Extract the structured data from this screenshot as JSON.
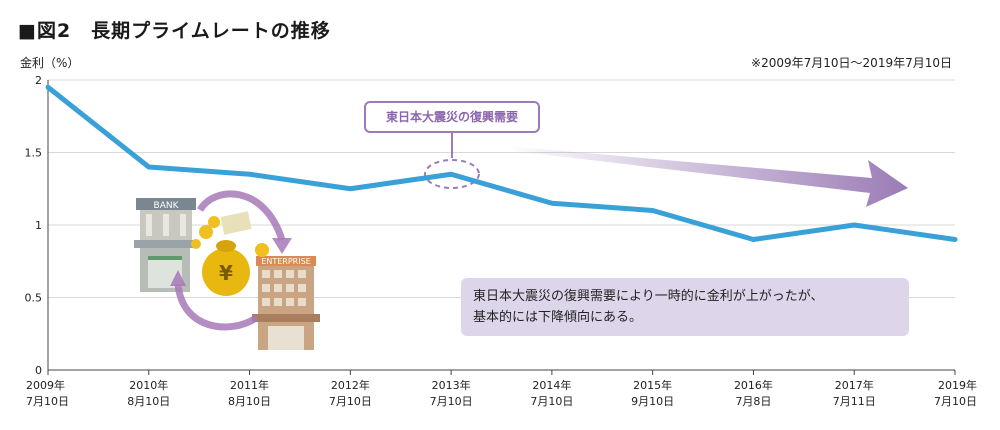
{
  "header": {
    "title": "■図2　長期プライムレートの推移",
    "period": "※2009年7月10日〜2019年7月10日"
  },
  "chart_data": {
    "type": "line",
    "title": "長期プライムレートの推移",
    "ylabel": "金利（%）",
    "ylim": [
      0,
      2
    ],
    "yticks": [
      "0",
      "0.5",
      "1",
      "1.5",
      "2"
    ],
    "yticks_values": [
      0,
      0.5,
      1,
      1.5,
      2
    ],
    "grid": true,
    "x": [
      [
        "2009年",
        "7月10日"
      ],
      [
        "2010年",
        "8月10日"
      ],
      [
        "2011年",
        "8月10日"
      ],
      [
        "2012年",
        "7月10日"
      ],
      [
        "2013年",
        "7月10日"
      ],
      [
        "2014年",
        "7月10日"
      ],
      [
        "2015年",
        "9月10日"
      ],
      [
        "2016年",
        "7月8日"
      ],
      [
        "2017年",
        "7月11日"
      ],
      [
        "2019年",
        "7月10日"
      ]
    ],
    "series": [
      {
        "values": [
          1.95,
          1.4,
          1.35,
          1.25,
          1.35,
          1.15,
          1.1,
          0.9,
          1.0,
          0.9
        ]
      }
    ],
    "line_color": "#3aa0d8",
    "accent_color": "#9b7cb6",
    "annotations": {
      "callout": "東日本大震災の復興需要",
      "note_lines": [
        "東日本大震災の復興需要により一時的に金利が上がったが、",
        "基本的には下降傾向にある。"
      ]
    },
    "illustration_labels": {
      "bank": "BANK",
      "enterprise": "ENTERPRISE",
      "yen": "¥"
    }
  }
}
